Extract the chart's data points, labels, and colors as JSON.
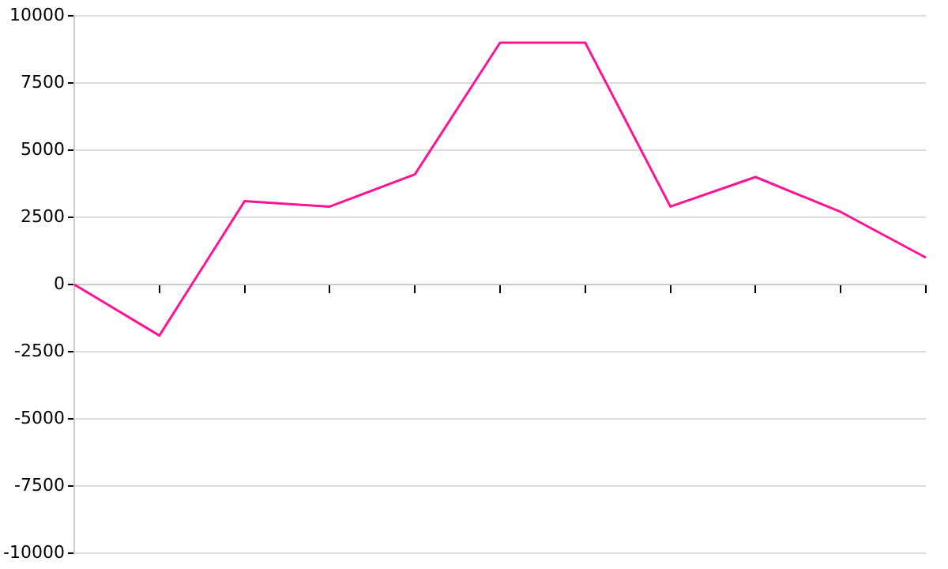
{
  "chart_data": {
    "type": "line",
    "categories": [
      null,
      null,
      null,
      null,
      null,
      null,
      null,
      null,
      null,
      null,
      null
    ],
    "values": [
      0,
      -1900,
      3100,
      2900,
      4100,
      9000,
      9000,
      2900,
      4000,
      2700,
      1000
    ],
    "color": "#ff1493",
    "ylim": [
      -10000,
      10000
    ],
    "yticks": [
      -10000,
      -7500,
      -5000,
      -2500,
      0,
      2500,
      5000,
      7500,
      10000
    ],
    "grid": "y",
    "tick_labels": "y",
    "marker": "none",
    "line_style": "solid"
  }
}
